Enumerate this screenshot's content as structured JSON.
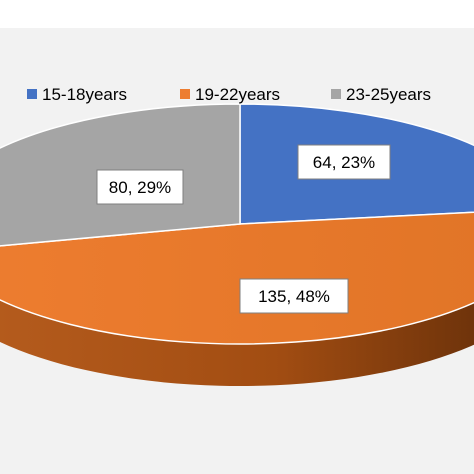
{
  "chart_data": {
    "type": "pie",
    "style": "3d",
    "title": "",
    "legend_position": "top",
    "categories": [
      "15-18years",
      "19-22years",
      "23-25years"
    ],
    "values": [
      64,
      135,
      80
    ],
    "percent_labels": [
      "23%",
      "48%",
      "29%"
    ],
    "data_labels": [
      "64, 23%",
      "135, 48%",
      "80, 29%"
    ],
    "colors": [
      "#4472c4",
      "#ed7d31",
      "#a5a5a5"
    ],
    "side_colors": [
      "#2f5597",
      "#843c0c",
      "#6b6b6b"
    ]
  }
}
